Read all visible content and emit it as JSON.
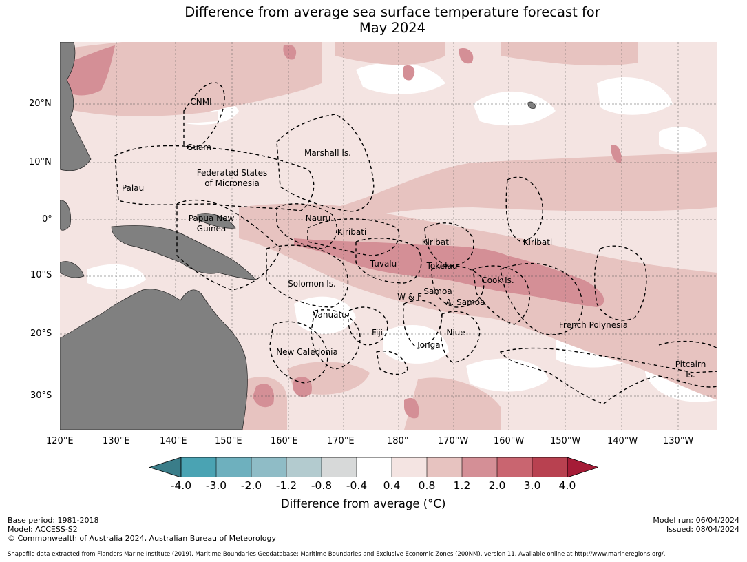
{
  "title": {
    "line1": "Difference from average sea surface temperature forecast for",
    "line2": "May 2024"
  },
  "map": {
    "lat_labels": [
      "20°N",
      "10°N",
      "0°",
      "10°S",
      "20°S",
      "30°S"
    ],
    "lon_labels": [
      "120°E",
      "130°E",
      "140°E",
      "150°E",
      "160°E",
      "170°E",
      "180°",
      "170°W",
      "160°W",
      "150°W",
      "140°W",
      "130°W"
    ],
    "regions": [
      {
        "text": "CNMI"
      },
      {
        "text": "Guam"
      },
      {
        "text": "Marshall Is."
      },
      {
        "text": "Federated States"
      },
      {
        "text": "of Micronesia"
      },
      {
        "text": "Palau"
      },
      {
        "text": "Nauru"
      },
      {
        "text": "Papua New"
      },
      {
        "text": "Guinea"
      },
      {
        "text": "Kiribati"
      },
      {
        "text": "Kiribati"
      },
      {
        "text": "Kiribati"
      },
      {
        "text": "Tuvalu"
      },
      {
        "text": "Tokelau"
      },
      {
        "text": "Cook Is."
      },
      {
        "text": "Solomon Is."
      },
      {
        "text": "Samoa"
      },
      {
        "text": "W & F"
      },
      {
        "text": "A. Samoa"
      },
      {
        "text": "Vanuatu"
      },
      {
        "text": "Fiji"
      },
      {
        "text": "Niue"
      },
      {
        "text": "Tonga"
      },
      {
        "text": "French Polynesia"
      },
      {
        "text": "New Caledonia"
      },
      {
        "text": "Pitcairn"
      },
      {
        "text": "Is."
      }
    ],
    "land_color": "#808080",
    "ocean_neutral": "#ffffff"
  },
  "colorbar": {
    "ticks": [
      "-4.0",
      "-3.0",
      "-2.0",
      "-1.2",
      "-0.8",
      "-0.4",
      "0.4",
      "0.8",
      "1.2",
      "2.0",
      "3.0",
      "4.0"
    ],
    "colors": [
      "#3a7d89",
      "#4aa3b3",
      "#6eb0be",
      "#8fbcc6",
      "#b3cbcf",
      "#d7d9d9",
      "#ffffff",
      "#f4e4e2",
      "#e7c3c0",
      "#d48f96",
      "#c96570",
      "#b84150",
      "#a51c37"
    ],
    "label": "Difference from average (°C)"
  },
  "footer": {
    "base_period": "Base period: 1981-2018",
    "model": "Model: ACCESS-S2",
    "copyright": "© Commonwealth of Australia 2024, Australian Bureau of Meteorology",
    "model_run": "Model run: 06/04/2024",
    "issued": "Issued: 08/04/2024",
    "credit": "Shapefile data extracted from Flanders Marine Institute (2019), Maritime Boundaries Geodatabase: Maritime Boundaries and Exclusive Economic Zones (200NM), version 11. Available online at http://www.marineregions.org/."
  }
}
